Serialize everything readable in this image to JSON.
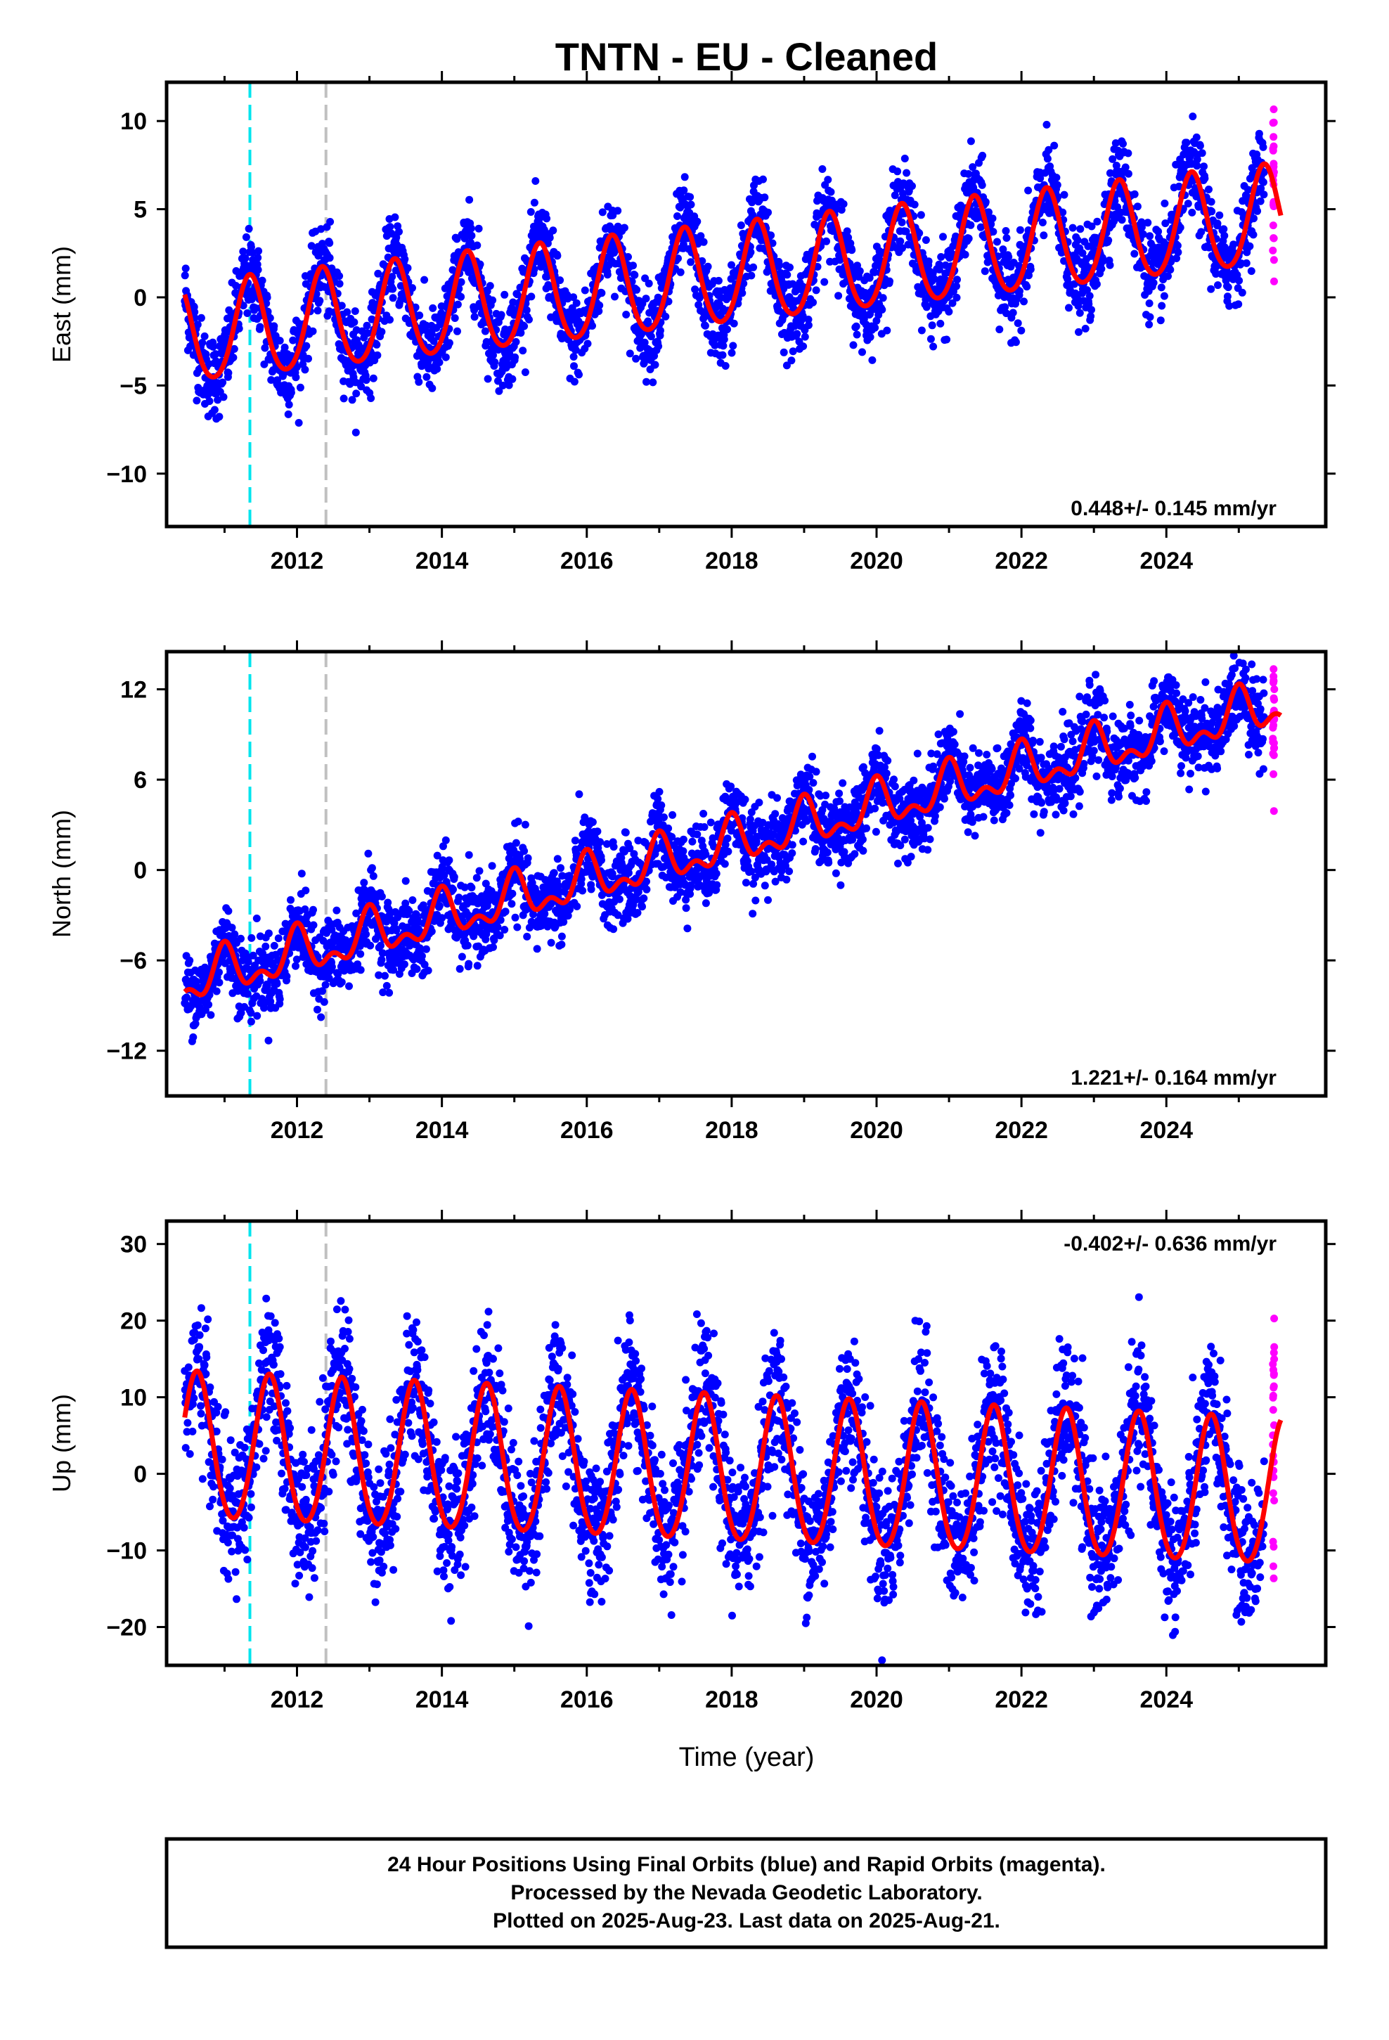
{
  "title": "TNTN  - EU - Cleaned",
  "xlabel": "Time (year)",
  "footer": {
    "line1": "24 Hour Positions Using Final Orbits (blue) and Rapid Orbits (magenta).",
    "line2": "Processed by the Nevada Geodetic Laboratory.",
    "line3": "Plotted on 2025-Aug-23. Last data on 2025-Aug-21."
  },
  "colors": {
    "final": "#0000ff",
    "rapid": "#ff00ff",
    "model": "#ff0000",
    "event_cyan": "#00e5ee",
    "event_gray": "#c0c0c0"
  },
  "chart_data": [
    {
      "type": "scatter",
      "name": "east",
      "ylabel": "East (mm)",
      "rate": "0.448+/- 0.145 mm/yr",
      "rate_position": "bottom-right",
      "xlim": [
        2010.2,
        2026.2
      ],
      "ylim": [
        -13,
        12.2
      ],
      "xticks": [
        2012,
        2014,
        2016,
        2018,
        2020,
        2022,
        2024
      ],
      "yticks": [
        -10,
        -5,
        0,
        5,
        10
      ],
      "events": [
        2011.35,
        2012.4
      ],
      "model": {
        "start": 2010.45,
        "end": 2025.58,
        "base": -2.2,
        "slope": 0.448,
        "amp": 2.8,
        "amp2": 0.3,
        "phase_peak": 2011.35
      },
      "scatter_sigma": 1.2,
      "series": [
        {
          "name": "Final Orbits"
        },
        {
          "name": "Rapid Orbits"
        }
      ]
    },
    {
      "type": "scatter",
      "name": "north",
      "ylabel": "North (mm)",
      "rate": "1.221+/- 0.164 mm/yr",
      "rate_position": "bottom-right",
      "xlim": [
        2010.2,
        2026.2
      ],
      "ylim": [
        -15,
        14.5
      ],
      "xticks": [
        2012,
        2014,
        2016,
        2018,
        2020,
        2022,
        2024
      ],
      "yticks": [
        -12,
        -6,
        0,
        6,
        12
      ],
      "events": [
        2011.35,
        2012.4
      ],
      "model": {
        "start": 2010.45,
        "end": 2025.58,
        "base": -7.5,
        "slope": 1.221,
        "amp": 1.3,
        "amp2": 0.8,
        "phase_peak": 2011.0
      },
      "scatter_sigma": 1.3,
      "series": [
        {
          "name": "Final Orbits"
        },
        {
          "name": "Rapid Orbits"
        }
      ]
    },
    {
      "type": "scatter",
      "name": "up",
      "ylabel": "Up (mm)",
      "rate": "-0.402+/- 0.636 mm/yr",
      "rate_position": "top-right",
      "xlim": [
        2010.2,
        2026.2
      ],
      "ylim": [
        -25,
        33
      ],
      "xticks": [
        2012,
        2014,
        2016,
        2018,
        2020,
        2022,
        2024
      ],
      "yticks": [
        -20,
        -10,
        0,
        10,
        20,
        30
      ],
      "events": [
        2011.35,
        2012.4
      ],
      "model": {
        "start": 2010.45,
        "end": 2025.58,
        "base": 3.2,
        "slope": -0.402,
        "amp": 9.5,
        "amp2": 0.8,
        "phase_peak": 2010.62
      },
      "scatter_sigma": 4.5,
      "series": [
        {
          "name": "Final Orbits"
        },
        {
          "name": "Rapid Orbits"
        }
      ]
    }
  ]
}
